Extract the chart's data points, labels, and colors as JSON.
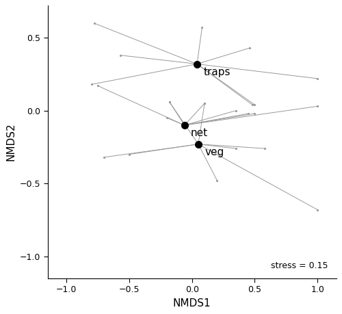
{
  "xlabel": "NMDS1",
  "ylabel": "NMDS2",
  "xlim": [
    -1.15,
    1.15
  ],
  "ylim": [
    -1.15,
    0.72
  ],
  "xticks": [
    -1.0,
    -0.5,
    0.0,
    0.5,
    1.0
  ],
  "yticks": [
    -1.0,
    -0.5,
    0.0,
    0.5
  ],
  "stress_text": "stress = 0.15",
  "centroids": {
    "traps": [
      0.04,
      0.32
    ],
    "net": [
      -0.06,
      -0.1
    ],
    "veg": [
      0.05,
      -0.23
    ]
  },
  "spokes_traps": [
    [
      -0.78,
      0.6
    ],
    [
      -0.57,
      0.38
    ],
    [
      -0.8,
      0.18
    ],
    [
      0.08,
      0.57
    ],
    [
      0.46,
      0.43
    ],
    [
      0.48,
      0.04
    ],
    [
      1.0,
      0.22
    ],
    [
      0.5,
      0.04
    ]
  ],
  "spokes_net": [
    [
      -0.75,
      0.17
    ],
    [
      -0.18,
      0.06
    ],
    [
      -0.2,
      -0.05
    ],
    [
      0.1,
      0.05
    ],
    [
      0.35,
      0.0
    ],
    [
      0.5,
      -0.02
    ],
    [
      1.0,
      0.03
    ],
    [
      0.45,
      -0.02
    ]
  ],
  "spokes_veg": [
    [
      -0.7,
      -0.32
    ],
    [
      -0.5,
      -0.3
    ],
    [
      -0.18,
      0.06
    ],
    [
      0.2,
      -0.48
    ],
    [
      0.35,
      -0.26
    ],
    [
      0.58,
      -0.26
    ],
    [
      1.0,
      -0.68
    ],
    [
      0.1,
      0.05
    ]
  ],
  "centroid_markersize": 7,
  "spoke_markersize": 2.5,
  "line_color": "#999999",
  "centroid_color": "black",
  "background_color": "white",
  "label_fontsize": 11,
  "tick_fontsize": 9,
  "stress_fontsize": 9
}
